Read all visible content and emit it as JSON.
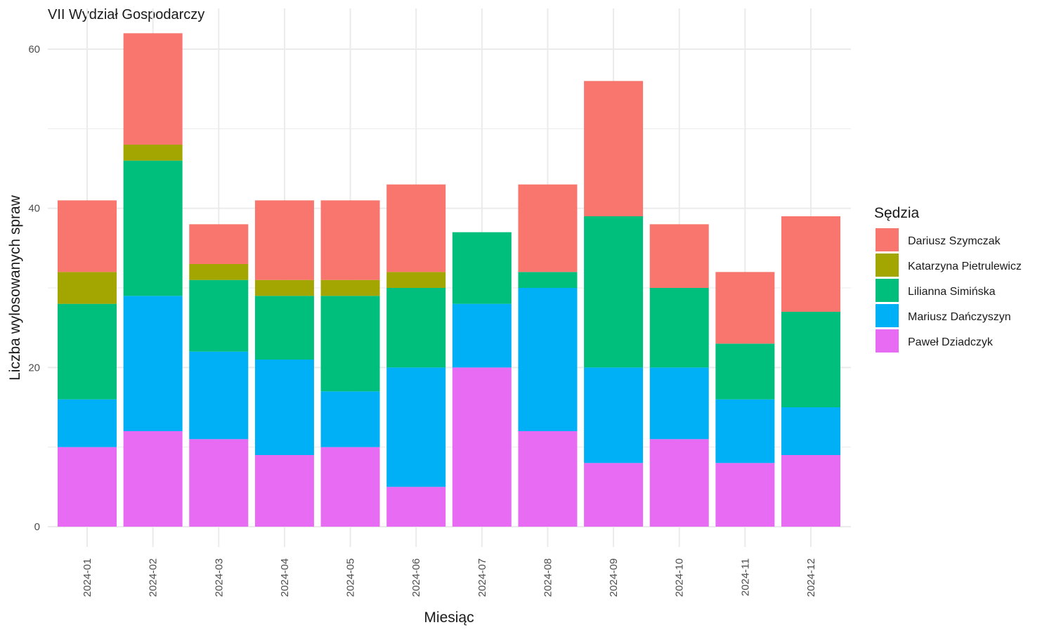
{
  "chart_data": {
    "type": "bar",
    "stacked": true,
    "title": "VII Wydział Gospodarczy",
    "xlabel": "Miesiąc",
    "ylabel": "Liczba wylosowanych spraw",
    "ylim": [
      0,
      62
    ],
    "yticks": [
      0,
      20,
      40,
      60
    ],
    "grid": true,
    "legend": {
      "title": "Sędzia",
      "position": "right"
    },
    "categories": [
      "2024-01",
      "2024-02",
      "2024-03",
      "2024-04",
      "2024-05",
      "2024-06",
      "2024-07",
      "2024-08",
      "2024-09",
      "2024-10",
      "2024-11",
      "2024-12"
    ],
    "series": [
      {
        "name": "Dariusz Szymczak",
        "color": "#F8766D",
        "values": [
          9,
          14,
          5,
          10,
          10,
          11,
          0,
          11,
          17,
          8,
          9,
          12
        ]
      },
      {
        "name": "Katarzyna Pietrulewicz",
        "color": "#A3A500",
        "values": [
          4,
          2,
          2,
          2,
          2,
          2,
          0,
          0,
          0,
          0,
          0,
          0
        ]
      },
      {
        "name": "Lilianna Simińska",
        "color": "#00BF7D",
        "values": [
          12,
          17,
          9,
          8,
          12,
          10,
          9,
          2,
          19,
          10,
          7,
          12
        ]
      },
      {
        "name": "Mariusz Dańczyszyn",
        "color": "#00B0F6",
        "values": [
          6,
          17,
          11,
          12,
          7,
          15,
          8,
          18,
          12,
          9,
          8,
          6
        ]
      },
      {
        "name": "Paweł Dziadczyk",
        "color": "#E76BF3",
        "values": [
          10,
          12,
          11,
          9,
          10,
          5,
          20,
          12,
          8,
          11,
          8,
          9
        ]
      }
    ]
  }
}
